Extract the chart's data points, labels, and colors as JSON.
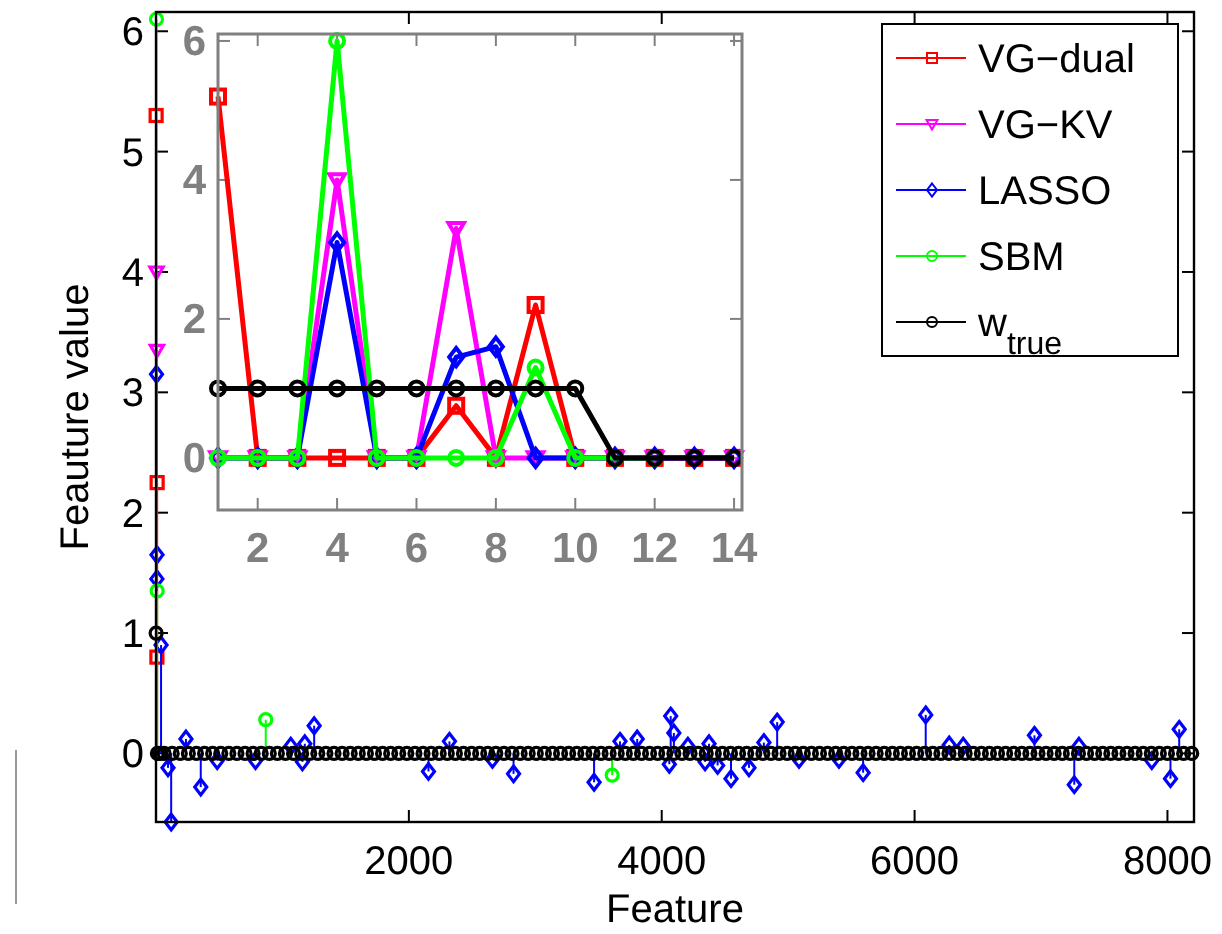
{
  "chart_data": [
    {
      "type": "lollipop",
      "xlabel": "Feature",
      "ylabel": "Feauture value",
      "xlim": [
        0,
        8210
      ],
      "ylim": [
        -0.57,
        6.16
      ],
      "xticks": [
        2000,
        4000,
        6000,
        8000
      ],
      "yticks": [
        0,
        1,
        2,
        3,
        4,
        5,
        6
      ],
      "legend": "top right",
      "series": [
        {
          "name": "VG−dual",
          "color": "#ff0000",
          "marker": "square",
          "x": [
            1,
            7,
            9
          ],
          "values": [
            5.3,
            0.8,
            2.25
          ]
        },
        {
          "name": "VG−KV",
          "color": "#ff00ff",
          "marker": "triangle",
          "x": [
            4,
            7
          ],
          "values": [
            4.0,
            3.35
          ]
        },
        {
          "name": "LASSO",
          "color": "#0000ff",
          "marker": "diamond",
          "x": [
            4,
            7,
            8,
            40,
            95,
            120,
            237,
            354,
            484,
            787,
            1066,
            1158,
            1177,
            1251,
            2155,
            2321,
            2661,
            2828,
            3465,
            3670,
            3806,
            4060,
            4071,
            4096,
            4207,
            4343,
            4374,
            4442,
            4548,
            4690,
            4808,
            4913,
            5086,
            5402,
            5593,
            6088,
            6274,
            6385,
            6948,
            7263,
            7300,
            7876,
            8024,
            8093
          ],
          "values": [
            3.15,
            1.45,
            1.65,
            0.9,
            -0.12,
            -0.57,
            0.12,
            -0.28,
            -0.06,
            -0.06,
            0.06,
            -0.07,
            0.08,
            0.23,
            -0.15,
            0.1,
            -0.05,
            -0.17,
            -0.24,
            0.1,
            0.12,
            -0.09,
            0.31,
            0.17,
            0.06,
            -0.07,
            0.08,
            -0.1,
            -0.21,
            -0.12,
            0.09,
            0.26,
            -0.05,
            -0.05,
            -0.16,
            0.32,
            0.07,
            0.06,
            0.15,
            -0.26,
            0.06,
            -0.06,
            -0.21,
            0.2
          ]
        },
        {
          "name": "SBM",
          "color": "#00ff00",
          "marker": "circle",
          "x": [
            4,
            9,
            868,
            3608
          ],
          "values": [
            6.1,
            1.35,
            0.28,
            -0.18
          ]
        },
        {
          "name": "w$_{true}$",
          "color": "#000000",
          "marker": "circle",
          "x": [
            1,
            11,
            32,
            64,
            128,
            192,
            256,
            320,
            384,
            448,
            512,
            576,
            640,
            704,
            768,
            832,
            896,
            960,
            1024,
            1088,
            1152,
            1216,
            1280,
            1344,
            1408,
            1472,
            1536,
            1600,
            1664,
            1728,
            1792,
            1856,
            1920,
            1984,
            2048,
            2112,
            2176,
            2240,
            2304,
            2368,
            2432,
            2496,
            2560,
            2624,
            2688,
            2752,
            2816,
            2880,
            2944,
            3008,
            3072,
            3136,
            3200,
            3264,
            3328,
            3392,
            3456,
            3520,
            3584,
            3648,
            3712,
            3776,
            3840,
            3904,
            3968,
            4032,
            4096,
            4160,
            4224,
            4288,
            4352,
            4416,
            4480,
            4544,
            4608,
            4672,
            4736,
            4800,
            4864,
            4928,
            4992,
            5056,
            5120,
            5184,
            5248,
            5312,
            5376,
            5440,
            5504,
            5568,
            5632,
            5696,
            5760,
            5824,
            5888,
            5952,
            6016,
            6080,
            6144,
            6208,
            6272,
            6336,
            6400,
            6464,
            6528,
            6592,
            6656,
            6720,
            6784,
            6848,
            6912,
            6976,
            7040,
            7104,
            7168,
            7232,
            7296,
            7360,
            7424,
            7488,
            7552,
            7616,
            7680,
            7744,
            7808,
            7872,
            7936,
            8000,
            8064,
            8128,
            8192
          ],
          "values": [
            1,
            0,
            0,
            0,
            0,
            0,
            0,
            0,
            0,
            0,
            0,
            0,
            0,
            0,
            0,
            0,
            0,
            0,
            0,
            0,
            0,
            0,
            0,
            0,
            0,
            0,
            0,
            0,
            0,
            0,
            0,
            0,
            0,
            0,
            0,
            0,
            0,
            0,
            0,
            0,
            0,
            0,
            0,
            0,
            0,
            0,
            0,
            0,
            0,
            0,
            0,
            0,
            0,
            0,
            0,
            0,
            0,
            0,
            0,
            0,
            0,
            0,
            0,
            0,
            0,
            0,
            0,
            0,
            0,
            0,
            0,
            0,
            0,
            0,
            0,
            0,
            0,
            0,
            0,
            0,
            0,
            0,
            0,
            0,
            0,
            0,
            0,
            0,
            0,
            0,
            0,
            0,
            0,
            0,
            0,
            0,
            0,
            0,
            0,
            0,
            0,
            0,
            0,
            0,
            0,
            0,
            0,
            0,
            0,
            0,
            0,
            0,
            0,
            0,
            0,
            0,
            0,
            0,
            0,
            0,
            0,
            0,
            0,
            0,
            0,
            0,
            0,
            0,
            0,
            0,
            0
          ]
        }
      ]
    },
    {
      "type": "line",
      "xlim": [
        1,
        14.2
      ],
      "ylim": [
        -0.75,
        6.1
      ],
      "xticks": [
        2,
        4,
        6,
        8,
        10,
        12,
        14
      ],
      "yticks": [
        0,
        2,
        4,
        6
      ],
      "x": [
        1,
        2,
        3,
        4,
        5,
        6,
        7,
        8,
        9,
        10,
        11,
        12,
        13,
        14
      ],
      "series": [
        {
          "color": "#ff0000",
          "marker": "square",
          "values": [
            5.2,
            0,
            0,
            0,
            0,
            0,
            0.75,
            0,
            2.2,
            0,
            0,
            0,
            0,
            0
          ]
        },
        {
          "color": "#ff00ff",
          "marker": "triangle",
          "values": [
            0,
            0,
            0,
            4.0,
            0,
            0,
            3.3,
            0,
            0,
            0,
            0,
            0,
            0,
            0
          ]
        },
        {
          "color": "#0000ff",
          "marker": "diamond",
          "values": [
            0,
            0,
            0,
            3.1,
            0,
            0,
            1.45,
            1.6,
            0,
            0,
            0,
            0,
            0,
            0
          ]
        },
        {
          "color": "#00ff00",
          "marker": "circle",
          "values": [
            0,
            0,
            0,
            6.0,
            0,
            0,
            0,
            0,
            1.3,
            0,
            0,
            0,
            null,
            null
          ]
        },
        {
          "color": "#000000",
          "marker": "circle",
          "values": [
            1,
            1,
            1,
            1,
            1,
            1,
            1,
            1,
            1,
            1,
            0,
            0,
            0,
            0
          ]
        }
      ]
    }
  ]
}
